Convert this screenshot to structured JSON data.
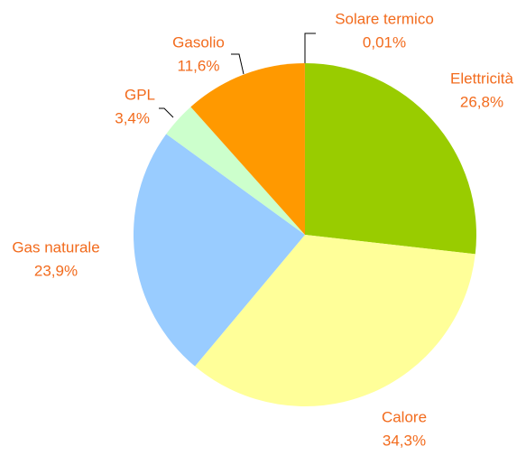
{
  "chart_data": {
    "type": "pie",
    "categories": [
      "Elettricità",
      "Calore",
      "Gas naturale",
      "GPL",
      "Gasolio",
      "Solare termico"
    ],
    "values": [
      26.8,
      34.3,
      23.9,
      3.4,
      11.6,
      0.01
    ],
    "value_labels": [
      "26,8%",
      "34,3%",
      "23,9%",
      "3,4%",
      "11,6%",
      "0,01%"
    ],
    "colors": [
      "#99cc00",
      "#ffff99",
      "#99ccff",
      "#ccffcc",
      "#ff9900",
      "#ff6600"
    ]
  }
}
